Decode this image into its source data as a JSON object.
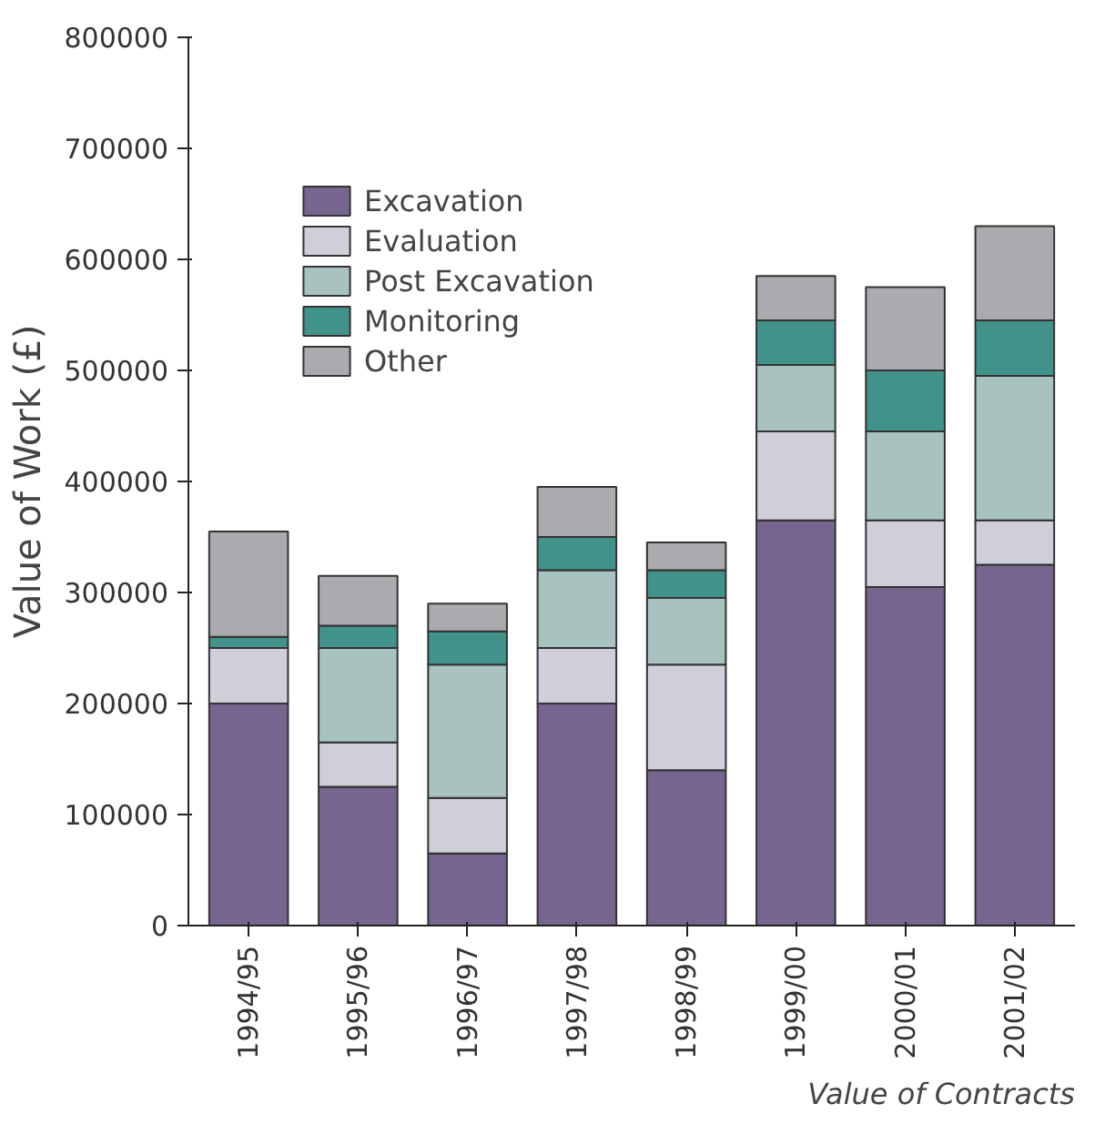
{
  "chart_data": {
    "type": "bar",
    "stacked": true,
    "ylabel": "Value of Work (£)",
    "categories": [
      "1994/95",
      "1995/96",
      "1996/97",
      "1997/98",
      "1998/99",
      "1999/00",
      "2000/01",
      "2001/02"
    ],
    "series": [
      {
        "name": "Excavation",
        "color": "#75658f",
        "values": [
          200000,
          125000,
          65000,
          200000,
          140000,
          365000,
          305000,
          325000
        ]
      },
      {
        "name": "Evaluation",
        "color": "#cecfd9",
        "values": [
          50000,
          40000,
          50000,
          50000,
          95000,
          80000,
          60000,
          40000
        ]
      },
      {
        "name": "Post Excavation",
        "color": "#a8c2c0",
        "values": [
          0,
          85000,
          120000,
          70000,
          60000,
          60000,
          80000,
          130000
        ]
      },
      {
        "name": "Monitoring",
        "color": "#42928c",
        "values": [
          10000,
          20000,
          30000,
          30000,
          25000,
          40000,
          55000,
          50000
        ]
      },
      {
        "name": "Other",
        "color": "#aaabae",
        "values": [
          95000,
          45000,
          25000,
          45000,
          25000,
          40000,
          75000,
          85000
        ]
      }
    ],
    "ylim": [
      0,
      800000
    ],
    "yticks": [
      0,
      100000,
      200000,
      300000,
      400000,
      500000,
      600000,
      700000,
      800000
    ],
    "grid": false,
    "legend": "top left",
    "annotations": [
      "Value of Contracts"
    ]
  }
}
